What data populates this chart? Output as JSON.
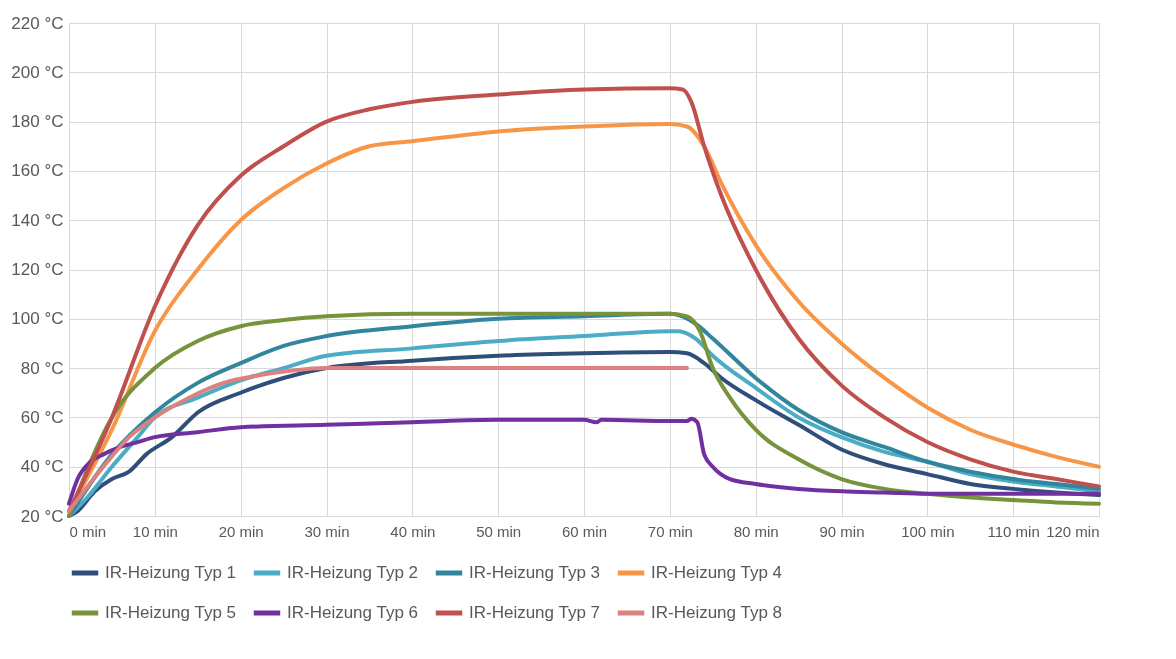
{
  "chart_data": {
    "type": "line",
    "xlim": [
      0,
      120
    ],
    "ylim": [
      20,
      220
    ],
    "xticks": [
      {
        "value": 0,
        "label": "0 min"
      },
      {
        "value": 10,
        "label": "10 min"
      },
      {
        "value": 20,
        "label": "20 min"
      },
      {
        "value": 30,
        "label": "30 min"
      },
      {
        "value": 40,
        "label": "40 min"
      },
      {
        "value": 50,
        "label": "50 min"
      },
      {
        "value": 60,
        "label": "60 min"
      },
      {
        "value": 70,
        "label": "70 min"
      },
      {
        "value": 80,
        "label": "80 min"
      },
      {
        "value": 90,
        "label": "90 min"
      },
      {
        "value": 100,
        "label": "100 min"
      },
      {
        "value": 110,
        "label": "110 min"
      },
      {
        "value": 120,
        "label": "120 min"
      }
    ],
    "yticks": [
      {
        "value": 20,
        "label": "20 °C"
      },
      {
        "value": 40,
        "label": "40 °C"
      },
      {
        "value": 60,
        "label": "60 °C"
      },
      {
        "value": 80,
        "label": "80 °C"
      },
      {
        "value": 100,
        "label": "100 °C"
      },
      {
        "value": 120,
        "label": "120 °C"
      },
      {
        "value": 140,
        "label": "140 °C"
      },
      {
        "value": 160,
        "label": "160 °C"
      },
      {
        "value": 180,
        "label": "180 °C"
      },
      {
        "value": 200,
        "label": "200 °C"
      },
      {
        "value": 220,
        "label": "220 °C"
      }
    ],
    "grid": true,
    "legend": "bottom",
    "marker": "none",
    "line_style": "solid",
    "series": [
      {
        "name": "IR-Heizung Typ 1",
        "color": "#2f4e7a",
        "x": [
          0,
          1,
          3,
          5,
          7,
          9,
          12,
          15,
          20,
          25,
          30,
          40,
          50,
          60,
          70,
          72,
          74,
          76,
          80,
          85,
          90,
          95,
          100,
          105,
          110,
          115,
          120
        ],
        "values": [
          20,
          22,
          30,
          35,
          38,
          45,
          52,
          62,
          70,
          76,
          80,
          83,
          85,
          86,
          86.5,
          86,
          82,
          76,
          67,
          57,
          47,
          41,
          37,
          33,
          31,
          29.5,
          28.5
        ]
      },
      {
        "name": "IR-Heizung Typ 2",
        "color": "#4bacc6",
        "x": [
          0,
          2,
          5,
          8,
          10,
          15,
          20,
          25,
          30,
          40,
          50,
          60,
          70,
          71,
          73,
          75,
          80,
          85,
          90,
          95,
          100,
          105,
          110,
          115,
          120
        ],
        "values": [
          20,
          27,
          40,
          52,
          60,
          68,
          75,
          80,
          85,
          88,
          91,
          93,
          95,
          95,
          92,
          85,
          72,
          60,
          52,
          46,
          42,
          37,
          34,
          32,
          30
        ]
      },
      {
        "name": "IR-Heizung Typ 3",
        "color": "#31859c",
        "x": [
          0,
          5,
          10,
          15,
          20,
          25,
          30,
          40,
          50,
          60,
          70,
          71,
          73,
          75,
          80,
          85,
          90,
          95,
          100,
          105,
          110,
          115,
          120
        ],
        "values": [
          20,
          45,
          62,
          74,
          82,
          89,
          93,
          97,
          100,
          101,
          102,
          101.5,
          98,
          92,
          76,
          63,
          54,
          48,
          42,
          38,
          35,
          33,
          31
        ]
      },
      {
        "name": "IR-Heizung Typ 4",
        "color": "#f79646",
        "x": [
          0,
          5,
          10,
          15,
          20,
          25,
          30,
          35,
          40,
          50,
          60,
          70,
          72,
          74,
          76,
          80,
          85,
          90,
          95,
          100,
          105,
          110,
          115,
          120
        ],
        "values": [
          22,
          55,
          95,
          120,
          140,
          153,
          163,
          170,
          172,
          176,
          178,
          179,
          178,
          170,
          155,
          130,
          107,
          90,
          76,
          64,
          55,
          49,
          44,
          40
        ]
      },
      {
        "name": "IR-Heizung Typ 5",
        "color": "#77933c",
        "x": [
          0,
          5,
          10,
          15,
          20,
          25,
          30,
          40,
          70,
          72,
          73.5,
          75,
          77,
          80,
          85,
          90,
          95,
          100,
          105,
          110,
          115,
          120
        ],
        "values": [
          20,
          60,
          80,
          91,
          97,
          99.5,
          101,
          102,
          102,
          101,
          95,
          80,
          68,
          55,
          43,
          35,
          31,
          29,
          27.5,
          26.5,
          25.5,
          25
        ]
      },
      {
        "name": "IR-Heizung Typ 6",
        "color": "#7030a0",
        "x": [
          0,
          1,
          2.5,
          4,
          6,
          8,
          10,
          15,
          20,
          30,
          40,
          50,
          60,
          61.5,
          62,
          70,
          72,
          72.5,
          73.2,
          74,
          75,
          77,
          80,
          85,
          90,
          95,
          100,
          110,
          120
        ],
        "values": [
          25,
          35,
          42,
          45,
          48,
          50,
          52,
          54,
          56,
          57,
          58,
          59,
          59,
          58,
          59,
          58.5,
          58.5,
          59.5,
          58,
          45,
          40,
          35,
          33,
          31,
          30,
          29.5,
          29,
          29,
          29
        ]
      },
      {
        "name": "IR-Heizung Typ 7",
        "color": "#c0504d",
        "x": [
          0,
          5,
          10,
          15,
          20,
          25,
          30,
          35,
          40,
          50,
          60,
          70,
          71.5,
          72.5,
          74,
          76,
          80,
          85,
          90,
          95,
          100,
          105,
          110,
          115,
          120
        ],
        "values": [
          22,
          60,
          105,
          138,
          158,
          170,
          180,
          185,
          188,
          191,
          193,
          193.5,
          193,
          188,
          170,
          150,
          120,
          92,
          73,
          60,
          50,
          43,
          38,
          35,
          32
        ]
      },
      {
        "name": "IR-Heizung Typ 8",
        "color": "#dc8080",
        "x": [
          0,
          4,
          7,
          10,
          14,
          18,
          22,
          26,
          30,
          40,
          50,
          60,
          72
        ],
        "values": [
          22,
          40,
          52,
          60,
          68,
          74,
          77,
          79,
          80,
          80,
          80,
          80,
          80
        ]
      }
    ]
  }
}
